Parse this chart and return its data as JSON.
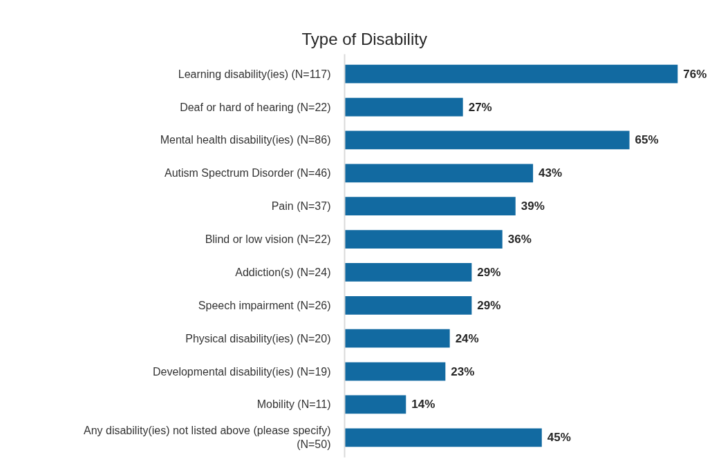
{
  "chart_data": {
    "type": "bar",
    "orientation": "horizontal",
    "title": "Type of Disability",
    "categories": [
      "Learning disability(ies) (N=117)",
      "Deaf or hard of hearing (N=22)",
      "Mental health disability(ies) (N=86)",
      "Autism Spectrum Disorder (N=46)",
      "Pain (N=37)",
      "Blind or low vision (N=22)",
      "Addiction(s) (N=24)",
      "Speech impairment (N=26)",
      "Physical disability(ies) (N=20)",
      "Developmental disability(ies) (N=19)",
      "Mobility (N=11)",
      "Any disability(ies) not listed above (please specify) (N=50)"
    ],
    "values": [
      76,
      27,
      65,
      43,
      39,
      36,
      29,
      29,
      24,
      23,
      14,
      45
    ],
    "value_labels": [
      "76%",
      "27%",
      "65%",
      "43%",
      "39%",
      "36%",
      "29%",
      "29%",
      "24%",
      "23%",
      "14%",
      "45%"
    ],
    "color": "#126aa1"
  }
}
